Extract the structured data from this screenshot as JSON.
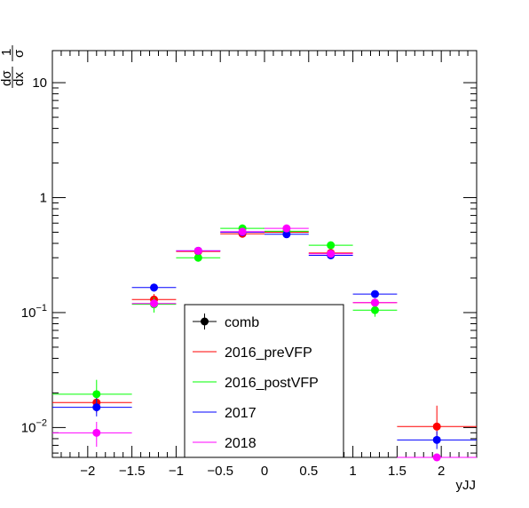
{
  "chart_data": {
    "type": "scatter",
    "title": "",
    "xlabel": "yJJ",
    "ylabel": "1/σ dσ/dx",
    "ylabel_parts": {
      "numerator": "1",
      "denominator": "σ",
      "dsig": "dσ",
      "dx": "dx"
    },
    "xlim": [
      -2.4,
      2.4
    ],
    "ylim": [
      0.0055,
      19
    ],
    "yscale": "log",
    "grid": false,
    "x_ticks": [
      {
        "value": -2,
        "label": "−2"
      },
      {
        "value": -1.5,
        "label": "−1.5"
      },
      {
        "value": -1,
        "label": "−1"
      },
      {
        "value": -0.5,
        "label": "−0.5"
      },
      {
        "value": 0,
        "label": "0"
      },
      {
        "value": 0.5,
        "label": "0.5"
      },
      {
        "value": 1,
        "label": "1"
      },
      {
        "value": 1.5,
        "label": "1.5"
      },
      {
        "value": 2,
        "label": "2"
      }
    ],
    "y_ticks": [
      {
        "value": 0.01,
        "base": "10",
        "exp": "−2"
      },
      {
        "value": 0.1,
        "base": "10",
        "exp": "−1"
      },
      {
        "value": 1,
        "base": "1",
        "exp": ""
      },
      {
        "value": 10,
        "base": "10",
        "exp": ""
      }
    ],
    "legend": {
      "placement": "bottom-center",
      "entries": [
        {
          "name": "comb",
          "color": "#000000",
          "marker": true
        },
        {
          "name": "2016_preVFP",
          "color": "#ff0000",
          "marker": false
        },
        {
          "name": "2016_postVFP",
          "color": "#00ff00",
          "marker": false
        },
        {
          "name": "2017",
          "color": "#0000ff",
          "marker": false
        },
        {
          "name": "2018",
          "color": "#ff00ff",
          "marker": false
        }
      ]
    },
    "series": [
      {
        "name": "2016_preVFP",
        "color": "#ff0000",
        "points": [
          {
            "x": -1.9,
            "y": 0.0165,
            "xlo": -2.4,
            "xhi": -1.5,
            "ylo": 0.0135,
            "yhi": 0.0195
          },
          {
            "x": -1.25,
            "y": 0.13,
            "xlo": -1.5,
            "xhi": -1.0,
            "ylo": 0.116,
            "yhi": 0.145
          },
          {
            "x": -0.75,
            "y": 0.34,
            "xlo": -1.0,
            "xhi": -0.5,
            "ylo": 0.325,
            "yhi": 0.355
          },
          {
            "x": -0.25,
            "y": 0.485,
            "xlo": -0.5,
            "xhi": 0.0,
            "ylo": 0.47,
            "yhi": 0.5
          },
          {
            "x": 0.25,
            "y": 0.5,
            "xlo": 0.0,
            "xhi": 0.5,
            "ylo": 0.485,
            "yhi": 0.515
          },
          {
            "x": 0.75,
            "y": 0.33,
            "xlo": 0.5,
            "xhi": 1.0,
            "ylo": 0.315,
            "yhi": 0.345
          },
          {
            "x": 1.25,
            "y": 0.122,
            "xlo": 1.0,
            "xhi": 1.5,
            "ylo": 0.112,
            "yhi": 0.132
          },
          {
            "x": 1.95,
            "y": 0.0102,
            "xlo": 1.5,
            "xhi": 2.4,
            "ylo": 0.0075,
            "yhi": 0.0155
          }
        ]
      },
      {
        "name": "2016_postVFP",
        "color": "#00ff00",
        "points": [
          {
            "x": -1.9,
            "y": 0.0195,
            "xlo": -2.4,
            "xhi": -1.5,
            "ylo": 0.0155,
            "yhi": 0.026
          },
          {
            "x": -1.25,
            "y": 0.118,
            "xlo": -1.5,
            "xhi": -1.0,
            "ylo": 0.1,
            "yhi": 0.136
          },
          {
            "x": -0.75,
            "y": 0.3,
            "xlo": -1.0,
            "xhi": -0.5,
            "ylo": 0.28,
            "yhi": 0.32
          },
          {
            "x": -0.25,
            "y": 0.54,
            "xlo": -0.5,
            "xhi": 0.0,
            "ylo": 0.515,
            "yhi": 0.565
          },
          {
            "x": 0.25,
            "y": 0.51,
            "xlo": 0.0,
            "xhi": 0.5,
            "ylo": 0.49,
            "yhi": 0.53
          },
          {
            "x": 0.75,
            "y": 0.385,
            "xlo": 0.5,
            "xhi": 1.0,
            "ylo": 0.365,
            "yhi": 0.405
          },
          {
            "x": 1.25,
            "y": 0.105,
            "xlo": 1.0,
            "xhi": 1.5,
            "ylo": 0.092,
            "yhi": 0.118
          }
        ]
      },
      {
        "name": "2017",
        "color": "#0000ff",
        "points": [
          {
            "x": -1.9,
            "y": 0.015,
            "xlo": -2.4,
            "xhi": -1.5,
            "ylo": 0.0125,
            "yhi": 0.018
          },
          {
            "x": -1.25,
            "y": 0.165,
            "xlo": -1.5,
            "xhi": -1.0,
            "ylo": 0.152,
            "yhi": 0.178
          },
          {
            "x": -0.75,
            "y": 0.345,
            "xlo": -1.0,
            "xhi": -0.5,
            "ylo": 0.33,
            "yhi": 0.36
          },
          {
            "x": -0.25,
            "y": 0.5,
            "xlo": -0.5,
            "xhi": 0.0,
            "ylo": 0.485,
            "yhi": 0.515
          },
          {
            "x": 0.25,
            "y": 0.48,
            "xlo": 0.0,
            "xhi": 0.5,
            "ylo": 0.465,
            "yhi": 0.495
          },
          {
            "x": 0.75,
            "y": 0.315,
            "xlo": 0.5,
            "xhi": 1.0,
            "ylo": 0.3,
            "yhi": 0.33
          },
          {
            "x": 1.25,
            "y": 0.145,
            "xlo": 1.0,
            "xhi": 1.5,
            "ylo": 0.135,
            "yhi": 0.155
          },
          {
            "x": 1.95,
            "y": 0.0078,
            "xlo": 1.5,
            "xhi": 2.4,
            "ylo": 0.0065,
            "yhi": 0.0093
          }
        ]
      },
      {
        "name": "2018",
        "color": "#ff00ff",
        "points": [
          {
            "x": -1.9,
            "y": 0.009,
            "xlo": -2.4,
            "xhi": -1.5,
            "ylo": 0.0068,
            "yhi": 0.0112
          },
          {
            "x": -1.25,
            "y": 0.12,
            "xlo": -1.5,
            "xhi": -1.0,
            "ylo": 0.11,
            "yhi": 0.13
          },
          {
            "x": -0.75,
            "y": 0.345,
            "xlo": -1.0,
            "xhi": -0.5,
            "ylo": 0.332,
            "yhi": 0.358
          },
          {
            "x": -0.25,
            "y": 0.505,
            "xlo": -0.5,
            "xhi": 0.0,
            "ylo": 0.49,
            "yhi": 0.52
          },
          {
            "x": 0.25,
            "y": 0.54,
            "xlo": 0.0,
            "xhi": 0.5,
            "ylo": 0.525,
            "yhi": 0.555
          },
          {
            "x": 0.75,
            "y": 0.325,
            "xlo": 0.5,
            "xhi": 1.0,
            "ylo": 0.312,
            "yhi": 0.338
          },
          {
            "x": 1.25,
            "y": 0.122,
            "xlo": 1.0,
            "xhi": 1.5,
            "ylo": 0.114,
            "yhi": 0.13
          },
          {
            "x": 1.95,
            "y": 0.0055,
            "xlo": 1.5,
            "xhi": 2.4,
            "ylo": 0.0055,
            "yhi": 0.0055
          }
        ]
      }
    ]
  }
}
